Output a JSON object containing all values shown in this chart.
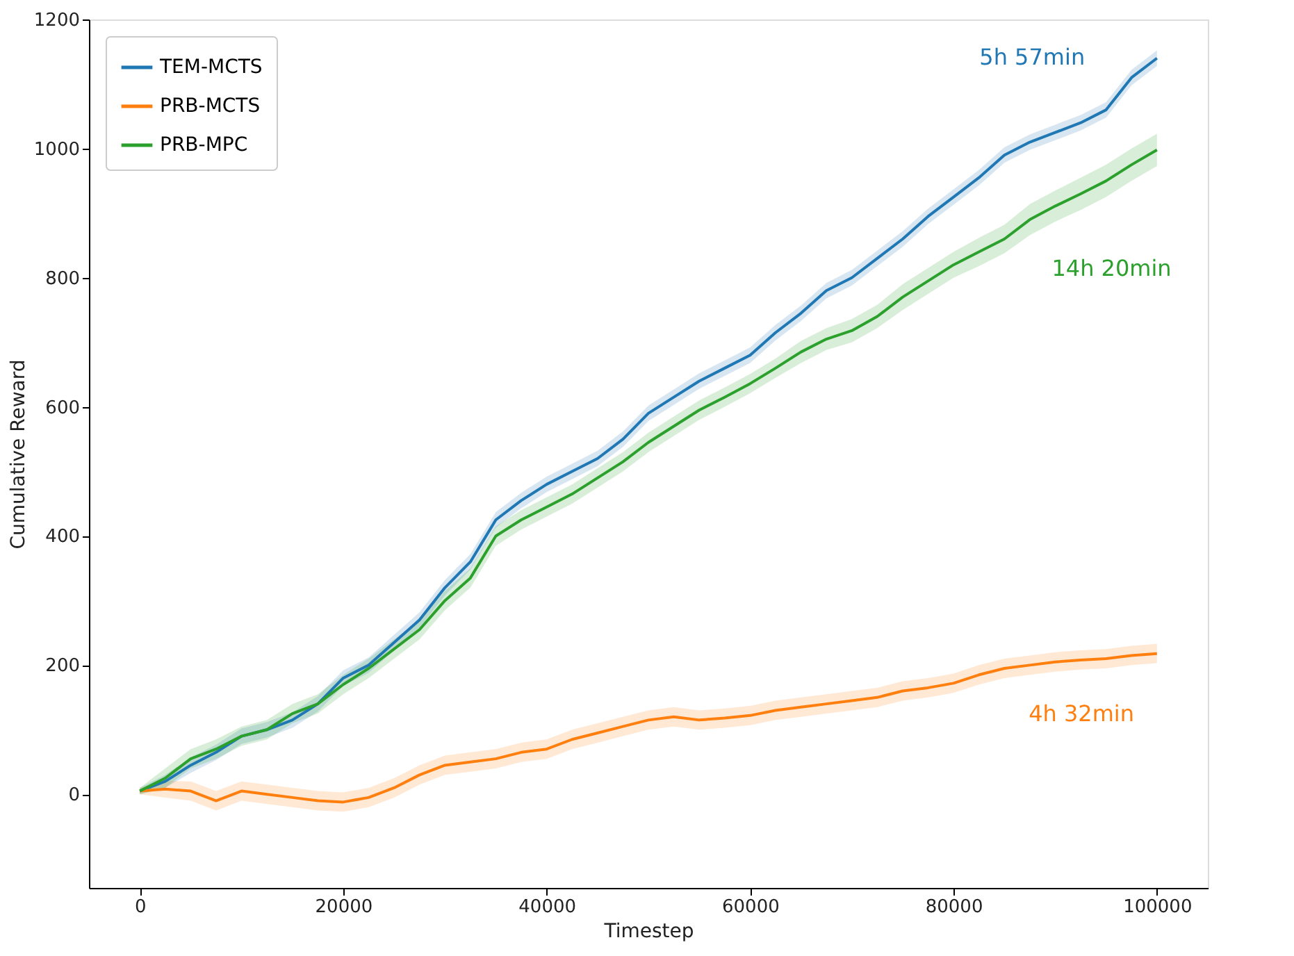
{
  "chart_data": {
    "type": "line",
    "xlabel": "Timestep",
    "ylabel": "Cumulative Reward",
    "x": [
      0,
      2500,
      5000,
      7500,
      10000,
      12500,
      15000,
      17500,
      20000,
      22500,
      25000,
      27500,
      30000,
      32500,
      35000,
      37500,
      40000,
      42500,
      45000,
      47500,
      50000,
      52500,
      55000,
      57500,
      60000,
      62500,
      65000,
      67500,
      70000,
      72500,
      75000,
      77500,
      80000,
      82500,
      85000,
      87500,
      90000,
      92500,
      95000,
      97500,
      100000
    ],
    "series": [
      {
        "name": "TEM-MCTS",
        "color": "#1f77b4",
        "values": [
          5,
          20,
          45,
          65,
          90,
          100,
          115,
          140,
          180,
          200,
          235,
          270,
          320,
          360,
          425,
          455,
          480,
          500,
          520,
          550,
          590,
          615,
          640,
          660,
          680,
          715,
          745,
          780,
          800,
          830,
          860,
          895,
          925,
          955,
          990,
          1010,
          1025,
          1040,
          1060,
          1110,
          1140
        ],
        "lower": [
          0,
          10,
          33,
          53,
          78,
          88,
          103,
          128,
          168,
          188,
          223,
          258,
          308,
          348,
          413,
          443,
          468,
          488,
          508,
          538,
          578,
          603,
          628,
          648,
          668,
          703,
          733,
          768,
          788,
          818,
          848,
          883,
          913,
          943,
          978,
          998,
          1013,
          1028,
          1048,
          1098,
          1128
        ],
        "upper": [
          10,
          30,
          57,
          77,
          102,
          112,
          127,
          152,
          192,
          212,
          247,
          282,
          332,
          372,
          437,
          467,
          492,
          512,
          532,
          562,
          602,
          627,
          652,
          672,
          692,
          727,
          757,
          792,
          812,
          842,
          872,
          907,
          937,
          967,
          1002,
          1022,
          1037,
          1052,
          1072,
          1122,
          1152
        ]
      },
      {
        "name": "PRB-MCTS",
        "color": "#ff7f0e",
        "values": [
          5,
          8,
          5,
          -10,
          5,
          0,
          -5,
          -10,
          -12,
          -5,
          10,
          30,
          45,
          50,
          55,
          65,
          70,
          85,
          95,
          105,
          115,
          120,
          115,
          118,
          122,
          130,
          135,
          140,
          145,
          150,
          160,
          165,
          172,
          185,
          195,
          200,
          205,
          208,
          210,
          215,
          218
        ],
        "lower": [
          0,
          -5,
          -10,
          -25,
          -10,
          -15,
          -20,
          -25,
          -27,
          -20,
          -5,
          15,
          30,
          35,
          40,
          50,
          55,
          70,
          80,
          90,
          100,
          105,
          100,
          103,
          107,
          115,
          120,
          125,
          130,
          135,
          145,
          150,
          157,
          170,
          180,
          185,
          190,
          193,
          195,
          200,
          203
        ],
        "upper": [
          10,
          21,
          20,
          5,
          20,
          15,
          10,
          5,
          3,
          10,
          25,
          45,
          60,
          65,
          70,
          80,
          85,
          100,
          110,
          120,
          130,
          135,
          130,
          133,
          137,
          145,
          150,
          155,
          160,
          165,
          175,
          180,
          187,
          200,
          210,
          215,
          220,
          223,
          225,
          230,
          233
        ]
      },
      {
        "name": "PRB-MPC",
        "color": "#2ca02c",
        "values": [
          5,
          25,
          55,
          70,
          90,
          100,
          125,
          140,
          170,
          195,
          225,
          255,
          300,
          335,
          400,
          425,
          445,
          465,
          490,
          515,
          545,
          570,
          595,
          615,
          636,
          660,
          685,
          705,
          718,
          740,
          770,
          795,
          820,
          840,
          860,
          890,
          911,
          930,
          950,
          975,
          998
        ],
        "lower": [
          0,
          10,
          40,
          55,
          75,
          85,
          110,
          125,
          155,
          180,
          210,
          240,
          285,
          320,
          385,
          410,
          430,
          450,
          475,
          500,
          530,
          555,
          580,
          600,
          621,
          645,
          668,
          688,
          700,
          722,
          750,
          775,
          800,
          818,
          838,
          866,
          887,
          905,
          925,
          950,
          973
        ],
        "upper": [
          10,
          40,
          70,
          85,
          105,
          115,
          140,
          155,
          185,
          210,
          240,
          270,
          315,
          350,
          415,
          440,
          460,
          480,
          505,
          530,
          560,
          585,
          610,
          630,
          651,
          675,
          702,
          722,
          736,
          758,
          790,
          815,
          840,
          862,
          882,
          914,
          935,
          955,
          975,
          1000,
          1023
        ]
      }
    ],
    "annotations": [
      "5h 57min",
      "14h 20min",
      "4h 32min"
    ],
    "xlim": [
      -5000,
      105000
    ],
    "ylim": [
      -145,
      1200
    ],
    "xticks": [
      0,
      20000,
      40000,
      60000,
      80000,
      100000
    ],
    "yticks": [
      0,
      200,
      400,
      600,
      800,
      1000,
      1200
    ],
    "legend": "top left",
    "grid": false,
    "marker": "none",
    "line_style": "solid"
  }
}
